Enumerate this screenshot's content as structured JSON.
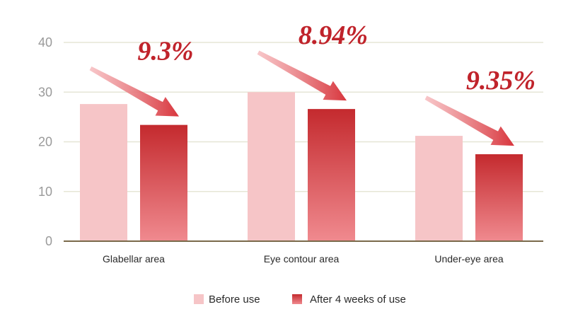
{
  "chart_data": {
    "type": "bar",
    "categories": [
      "Glabellar area",
      "Eye contour area",
      "Under-eye area"
    ],
    "series": [
      {
        "name": "Before use",
        "values": [
          27.6,
          30.0,
          21.2
        ]
      },
      {
        "name": "After 4 weeks of use",
        "values": [
          23.4,
          26.6,
          17.5
        ]
      }
    ],
    "yticks": [
      0,
      10,
      20,
      30,
      40
    ],
    "ylim": [
      0,
      40
    ],
    "grid": true,
    "legend_position": "bottom-center",
    "annotations": [
      "9.3%",
      "8.94%",
      "9.35%"
    ],
    "colors": {
      "before": "#f6c5c7",
      "after_top": "#c42a2e",
      "after_bottom": "#f08a8f",
      "annotation": "#c0232b",
      "grid": "#e6e6d6",
      "axis": "#7a6a4a"
    }
  }
}
